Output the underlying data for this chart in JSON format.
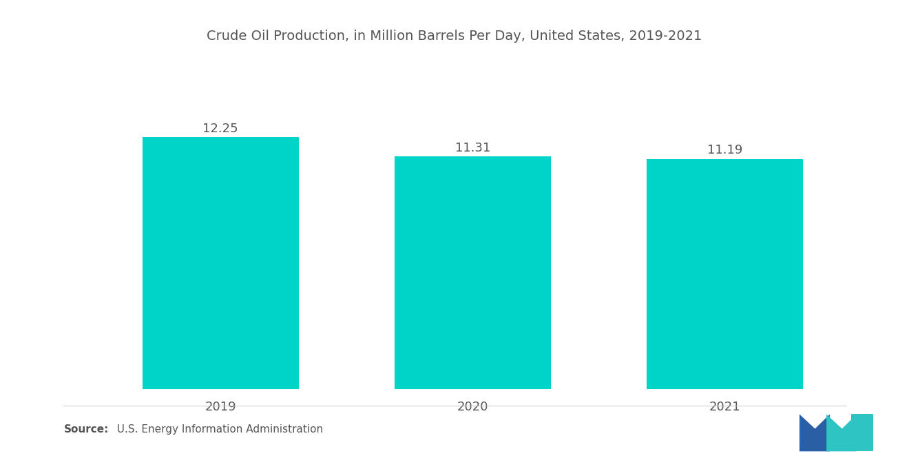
{
  "title": "Crude Oil Production, in Million Barrels Per Day, United States, 2019-2021",
  "categories": [
    "2019",
    "2020",
    "2021"
  ],
  "values": [
    12.25,
    11.31,
    11.19
  ],
  "bar_color": "#00D4C8",
  "background_color": "#FFFFFF",
  "title_fontsize": 14,
  "label_fontsize": 13,
  "tick_fontsize": 13,
  "source_bold": "Source:",
  "source_rest": "  U.S. Energy Information Administration",
  "ylim": [
    0,
    13.8
  ],
  "bar_width": 0.62,
  "text_color": "#555555",
  "logo_blue": "#2B5FA5",
  "logo_teal": "#2EC4C4"
}
